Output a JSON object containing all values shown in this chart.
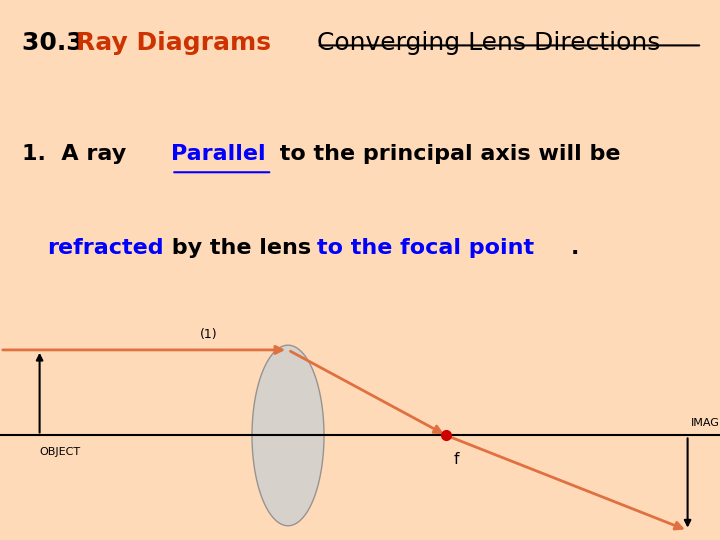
{
  "background_color": "#FFDAB9",
  "title_30_3": "30.3 ",
  "title_ray": "Ray Diagrams",
  "title_ray_color": "#CC3300",
  "title_converging": "Converging Lens Directions",
  "title_converging_color": "#000000",
  "text_1_prefix": "1.  A ray ",
  "text_parallel": "Parallel",
  "text_1_suffix": " to the principal axis will be",
  "text_2_refracted": "refracted",
  "text_2_mid": " by the lens ",
  "text_2_bold": "to the focal point",
  "text_2_end": ".",
  "ray_color": "#E07040",
  "focal_point_color": "#CC0000",
  "object_label": "OBJECT",
  "image_label": "IMAGE",
  "focal_label": "f",
  "ray_label": "(1)",
  "font_size_title": 18,
  "font_size_text": 16
}
